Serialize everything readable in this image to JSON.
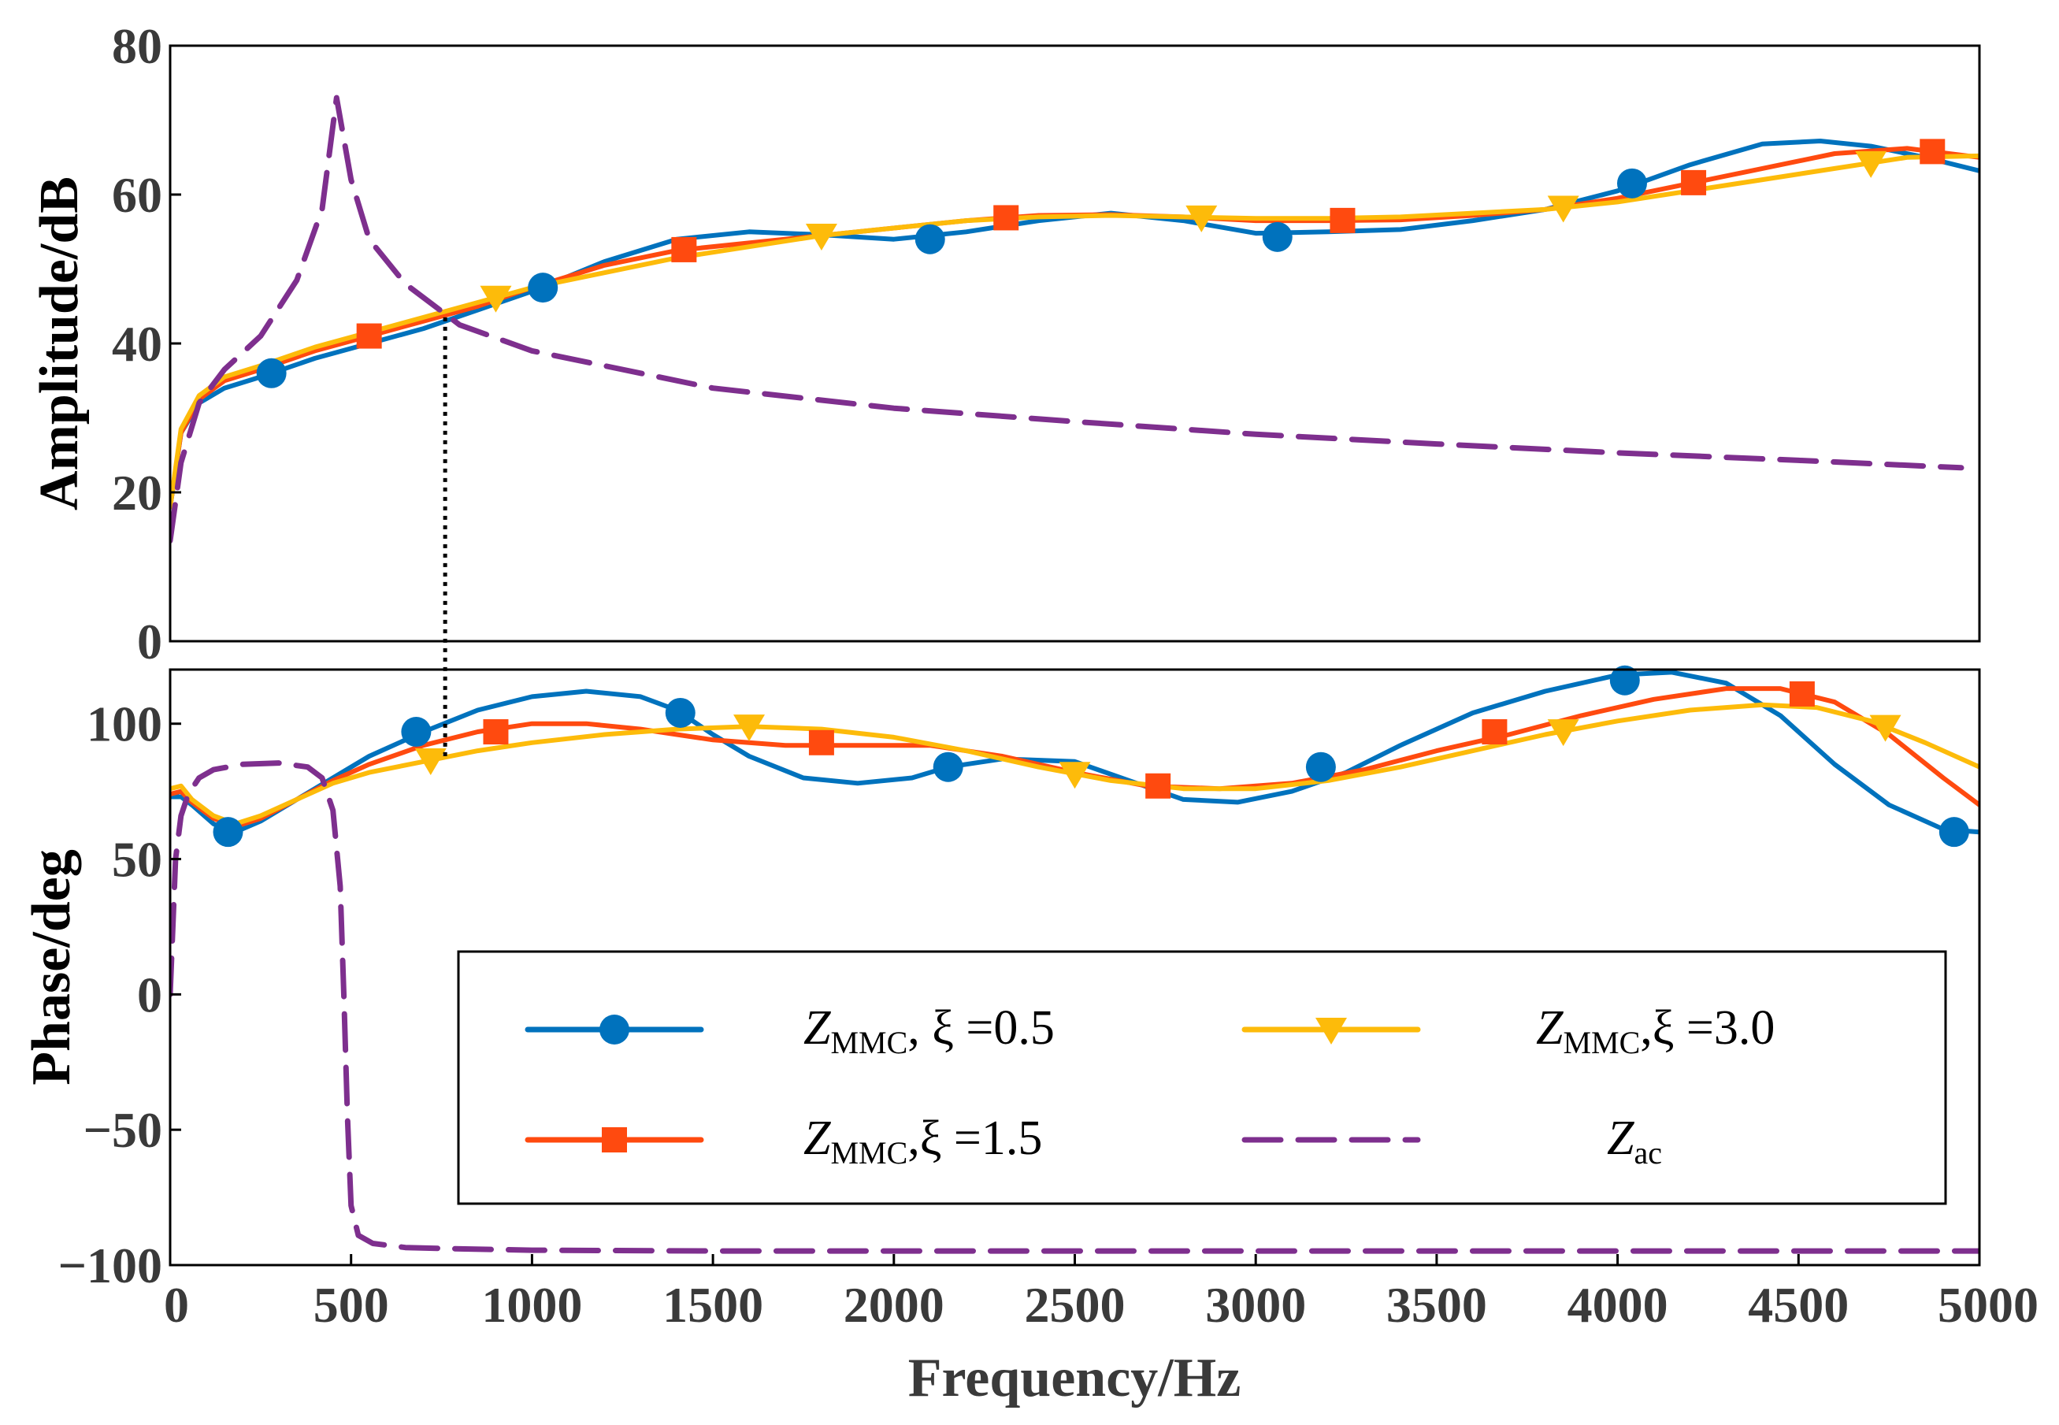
{
  "chart_data": [
    {
      "type": "line",
      "panel": "amplitude",
      "title": "",
      "xlabel": "",
      "ylabel": "Amplitude/dB",
      "xlim": [
        0,
        5000
      ],
      "ylim": [
        0,
        80
      ],
      "yticks": [
        "0",
        "20",
        "40",
        "60",
        "80"
      ],
      "grid": false,
      "series": [
        {
          "name": "ZMMC, ξ =0.5",
          "color": "#0072BD",
          "marker": "circle",
          "dash": "solid",
          "x": [
            0,
            30,
            80,
            150,
            250,
            400,
            550,
            700,
            850,
            1000,
            1200,
            1400,
            1600,
            1800,
            2000,
            2200,
            2400,
            2600,
            2800,
            3000,
            3200,
            3400,
            3600,
            3800,
            4000,
            4200,
            4400,
            4560,
            4700,
            4850,
            5000
          ],
          "y": [
            18,
            28,
            32,
            34,
            35.5,
            38,
            40,
            42,
            44.5,
            47,
            51,
            54,
            55,
            54.6,
            54,
            55,
            56.5,
            57.5,
            56.5,
            54.8,
            55,
            55.3,
            56.5,
            58,
            60.5,
            64,
            66.8,
            67.2,
            66.5,
            65,
            63.2
          ],
          "marker_x": [
            280,
            1030,
            2100,
            3060,
            4040
          ],
          "marker_y": [
            36,
            47.5,
            54,
            54.3,
            61.5
          ]
        },
        {
          "name": "ZMMC,ξ =1.5",
          "color": "#FF4A0F",
          "marker": "square",
          "dash": "solid",
          "x": [
            0,
            30,
            80,
            150,
            250,
            400,
            550,
            700,
            850,
            1000,
            1200,
            1400,
            1600,
            1800,
            2000,
            2200,
            2400,
            2600,
            2800,
            3000,
            3200,
            3400,
            3600,
            3800,
            4000,
            4200,
            4400,
            4600,
            4800,
            5000
          ],
          "y": [
            18,
            28,
            32.5,
            35,
            36.5,
            39,
            41,
            43,
            45,
            47.5,
            50.5,
            52.5,
            53.5,
            54.5,
            55.5,
            56.5,
            57.2,
            57.3,
            57,
            56.5,
            56.5,
            56.6,
            57.2,
            58,
            59.5,
            61.5,
            63.5,
            65.5,
            66.2,
            65
          ]
        },
        {
          "name": "ZMMC,ξ =3.0",
          "color": "#FDBB0A",
          "marker": "triangle-down",
          "dash": "solid",
          "x": [
            0,
            30,
            80,
            150,
            250,
            400,
            550,
            700,
            850,
            1000,
            1200,
            1400,
            1600,
            1800,
            2000,
            2200,
            2400,
            2600,
            2800,
            3000,
            3200,
            3400,
            3600,
            3800,
            4000,
            4200,
            4400,
            4600,
            4800,
            5000
          ],
          "y": [
            18,
            28.5,
            33,
            35.5,
            37,
            39.5,
            41.5,
            43.5,
            45.5,
            47.5,
            49.5,
            51.5,
            53,
            54.5,
            55.5,
            56.5,
            57,
            57.2,
            57,
            56.8,
            56.8,
            57,
            57.5,
            58,
            59,
            60.5,
            62,
            63.5,
            65,
            65.2
          ]
        },
        {
          "name": "Zac",
          "color": "#7E2F8E",
          "marker": "none",
          "dash": "dashed",
          "x": [
            0,
            30,
            80,
            150,
            250,
            350,
            420,
            460,
            500,
            550,
            650,
            800,
            1000,
            1500,
            2000,
            2500,
            3000,
            3500,
            4000,
            4500,
            4950
          ],
          "y": [
            13.5,
            24,
            32,
            36.5,
            41,
            48.5,
            58,
            73,
            62,
            54,
            48,
            42.5,
            39,
            34,
            31.3,
            29.5,
            27.8,
            26.5,
            25.3,
            24.3,
            23.3
          ]
        }
      ],
      "annotations": [
        {
          "type": "vertical-dotted-line",
          "x": 760,
          "from_y": 43.5,
          "to_phase_deg": 88
        }
      ]
    },
    {
      "type": "line",
      "panel": "phase",
      "title": "",
      "xlabel": "Frequency/Hz",
      "ylabel": "Phase/deg",
      "xlim": [
        0,
        5000
      ],
      "ylim": [
        -100,
        120
      ],
      "xticks": [
        "0",
        "500",
        "1000",
        "1500",
        "2000",
        "2500",
        "3000",
        "3500",
        "4000",
        "4500",
        "5000"
      ],
      "yticks": [
        "−100",
        "−50",
        "0",
        "50",
        "100"
      ],
      "grid": false,
      "series": [
        {
          "name": "ZMMC, ξ =0.5",
          "color": "#0072BD",
          "marker": "circle",
          "dash": "solid",
          "x": [
            0,
            30,
            60,
            120,
            180,
            250,
            350,
            450,
            550,
            700,
            850,
            1000,
            1150,
            1300,
            1400,
            1500,
            1600,
            1750,
            1900,
            2050,
            2150,
            2300,
            2500,
            2650,
            2800,
            2950,
            3100,
            3250,
            3400,
            3600,
            3800,
            4000,
            4150,
            4300,
            4450,
            4600,
            4750,
            4900,
            5000
          ],
          "y": [
            73,
            73,
            70,
            63,
            60,
            64,
            72,
            80,
            88,
            97,
            105,
            110,
            112,
            110,
            105,
            96,
            88,
            80,
            78,
            80,
            84,
            87,
            86,
            79,
            72,
            71,
            75,
            82,
            92,
            104,
            112,
            118,
            119,
            115,
            103,
            85,
            70,
            61,
            60
          ],
          "marker_x": [
            160,
            680,
            1410,
            2150,
            3180,
            4020,
            4930
          ],
          "marker_y": [
            60,
            97,
            104,
            84,
            84,
            116,
            60
          ]
        },
        {
          "name": "ZMMC,ξ =1.5",
          "color": "#FF4A0F",
          "marker": "square",
          "dash": "solid",
          "x": [
            0,
            30,
            60,
            120,
            180,
            250,
            350,
            450,
            550,
            700,
            850,
            1000,
            1150,
            1300,
            1500,
            1700,
            1900,
            2100,
            2300,
            2500,
            2700,
            2900,
            3100,
            3300,
            3500,
            3700,
            3900,
            4100,
            4300,
            4450,
            4600,
            4750,
            4900,
            5000
          ],
          "y": [
            74,
            75,
            71,
            65,
            62,
            65,
            72,
            79,
            85,
            92,
            97,
            100,
            100,
            98,
            94,
            92,
            92,
            92,
            88,
            82,
            77,
            76,
            78,
            83,
            90,
            96,
            103,
            109,
            113,
            113,
            108,
            96,
            80,
            70
          ],
          "marker_x": [
            900,
            1800,
            2730,
            3660,
            4510
          ],
          "marker_y": [
            97,
            93,
            77,
            97,
            111
          ]
        },
        {
          "name": "ZMMC,ξ =3.0",
          "color": "#FDBB0A",
          "marker": "triangle-down",
          "dash": "solid",
          "x": [
            0,
            30,
            60,
            120,
            180,
            250,
            350,
            450,
            550,
            700,
            850,
            1000,
            1200,
            1400,
            1600,
            1800,
            2000,
            2200,
            2400,
            2600,
            2800,
            3000,
            3200,
            3400,
            3600,
            3800,
            4000,
            4200,
            4400,
            4550,
            4700,
            4850,
            5000
          ],
          "y": [
            76,
            77,
            72,
            66,
            63,
            66,
            72,
            78,
            82,
            86,
            90,
            93,
            96,
            98,
            99,
            98,
            95,
            90,
            84,
            79,
            76,
            76,
            79,
            84,
            90,
            96,
            101,
            105,
            107,
            106,
            101,
            93,
            84
          ]
        },
        {
          "name": "Zac",
          "color": "#7E2F8E",
          "marker": "none",
          "dash": "dashed",
          "x": [
            0,
            15,
            30,
            50,
            80,
            120,
            200,
            300,
            380,
            420,
            450,
            470,
            480,
            490,
            500,
            520,
            560,
            650,
            800,
            1000,
            1500,
            2000,
            2500,
            3000,
            3500,
            4000,
            4500,
            5000
          ],
          "y": [
            0,
            50,
            66,
            74,
            80,
            83,
            85,
            85.5,
            84,
            80,
            68,
            40,
            0,
            -45,
            -78,
            -89,
            -92,
            -93.5,
            -94,
            -94.5,
            -94.8,
            -94.8,
            -94.8,
            -94.8,
            -94.8,
            -94.8,
            -94.8,
            -94.8
          ]
        }
      ]
    }
  ],
  "legend": {
    "placement": "lower-right of phase panel",
    "entries": [
      {
        "series": "ZMMC, ξ =0.5",
        "main": "Z",
        "sub": "MMC",
        "rest": ", ξ =0.5"
      },
      {
        "series": "ZMMC,ξ =3.0",
        "main": "Z",
        "sub": "MMC",
        "rest": ",ξ =3.0"
      },
      {
        "series": "ZMMC,ξ =1.5",
        "main": "Z",
        "sub": "MMC",
        "rest": ",ξ =1.5"
      },
      {
        "series": "Zac",
        "main": "Z",
        "sub": "ac",
        "rest": ""
      }
    ]
  }
}
